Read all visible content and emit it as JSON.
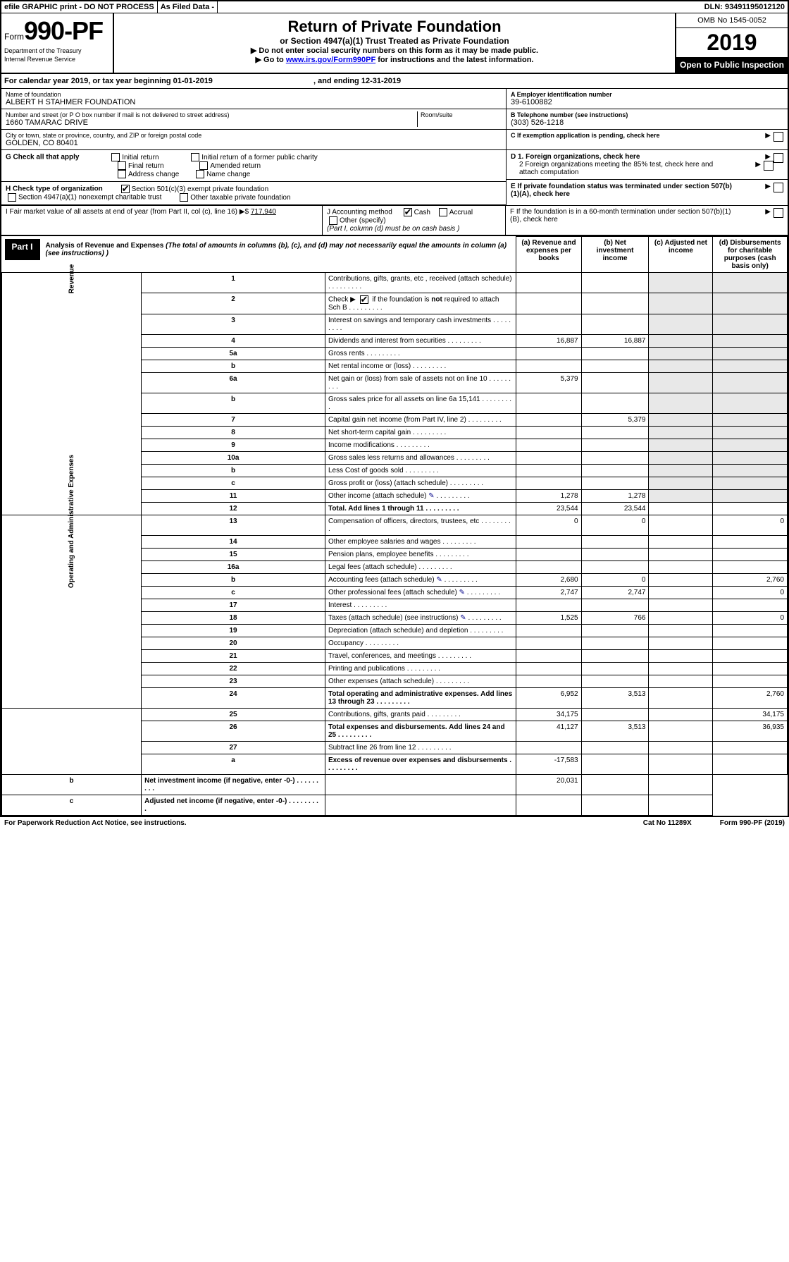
{
  "topbar": {
    "efile": "efile GRAPHIC print - DO NOT PROCESS",
    "asfiled": "As Filed Data -",
    "dln": "DLN: 93491195012120"
  },
  "header": {
    "form_prefix": "Form",
    "form_number": "990-PF",
    "dept1": "Department of the Treasury",
    "dept2": "Internal Revenue Service",
    "title": "Return of Private Foundation",
    "subtitle": "or Section 4947(a)(1) Trust Treated as Private Foundation",
    "inst1": "▶ Do not enter social security numbers on this form as it may be made public.",
    "inst2_pre": "▶ Go to ",
    "inst2_link": "www.irs.gov/Form990PF",
    "inst2_post": " for instructions and the latest information.",
    "omb": "OMB No 1545-0052",
    "year": "2019",
    "open": "Open to Public Inspection"
  },
  "calendar": {
    "text_pre": "For calendar year 2019, or tax year beginning ",
    "begin": "01-01-2019",
    "mid": ", and ending ",
    "end": "12-31-2019"
  },
  "info": {
    "name_lbl": "Name of foundation",
    "name": "ALBERT H STAHMER FOUNDATION",
    "addr_lbl": "Number and street (or P O  box number if mail is not delivered to street address)",
    "addr": "1660 TAMARAC DRIVE",
    "room_lbl": "Room/suite",
    "city_lbl": "City or town, state or province, country, and ZIP or foreign postal code",
    "city": "GOLDEN, CO  80401",
    "a_lbl": "A Employer identification number",
    "a_val": "39-6100882",
    "b_lbl": "B Telephone number (see instructions)",
    "b_val": "(303) 526-1218",
    "c_lbl": "C If exemption application is pending, check here"
  },
  "check": {
    "g": "G Check all that apply",
    "initial": "Initial return",
    "initial_former": "Initial return of a former public charity",
    "final": "Final return",
    "amended": "Amended return",
    "addr_chg": "Address change",
    "name_chg": "Name change",
    "h": "H Check type of organization",
    "h_501c3": "Section 501(c)(3) exempt private foundation",
    "h_4947": "Section 4947(a)(1) nonexempt charitable trust",
    "h_other": "Other taxable private foundation",
    "d1": "D 1. Foreign organizations, check here",
    "d2": "2 Foreign organizations meeting the 85% test, check here and attach computation",
    "e": "E  If private foundation status was terminated under section 507(b)(1)(A), check here",
    "i_lbl": "I Fair market value of all assets at end of year (from Part II, col  (c), line 16) ▶$",
    "i_val": "717,940",
    "j_lbl": "J Accounting method",
    "j_cash": "Cash",
    "j_accrual": "Accrual",
    "j_other": "Other (specify)",
    "j_note": "(Part I, column (d) must be on cash basis )",
    "f": "F  If the foundation is in a 60-month termination under section 507(b)(1)(B), check here"
  },
  "part1": {
    "tag": "Part I",
    "title": "Analysis of Revenue and Expenses",
    "note": "(The total of amounts in columns (b), (c), and (d) may not necessarily equal the amounts in column (a) (see instructions) )",
    "cols": {
      "a": "(a) Revenue and expenses per books",
      "b": "(b) Net investment income",
      "c": "(c) Adjusted net income",
      "d": "(d) Disbursements for charitable purposes (cash basis only)"
    }
  },
  "side": {
    "rev": "Revenue",
    "exp": "Operating and Administrative Expenses"
  },
  "rows": [
    {
      "n": "1",
      "d": "Contributions, gifts, grants, etc , received (attach schedule)"
    },
    {
      "n": "2",
      "d": "Check ▶ ☑ if the foundation is not required to attach Sch B"
    },
    {
      "n": "3",
      "d": "Interest on savings and temporary cash investments"
    },
    {
      "n": "4",
      "d": "Dividends and interest from securities",
      "a": "16,887",
      "b": "16,887"
    },
    {
      "n": "5a",
      "d": "Gross rents"
    },
    {
      "n": "b",
      "d": "Net rental income or (loss)"
    },
    {
      "n": "6a",
      "d": "Net gain or (loss) from sale of assets not on line 10",
      "a": "5,379"
    },
    {
      "n": "b",
      "d": "Gross sales price for all assets on line 6a          15,141"
    },
    {
      "n": "7",
      "d": "Capital gain net income (from Part IV, line 2)",
      "b": "5,379"
    },
    {
      "n": "8",
      "d": "Net short-term capital gain"
    },
    {
      "n": "9",
      "d": "Income modifications"
    },
    {
      "n": "10a",
      "d": "Gross sales less returns and allowances"
    },
    {
      "n": "b",
      "d": "Less  Cost of goods sold"
    },
    {
      "n": "c",
      "d": "Gross profit or (loss) (attach schedule)"
    },
    {
      "n": "11",
      "d": "Other income (attach schedule)",
      "icon": true,
      "a": "1,278",
      "b": "1,278"
    },
    {
      "n": "12",
      "d": "Total. Add lines 1 through 11",
      "bold": true,
      "a": "23,544",
      "b": "23,544"
    },
    {
      "n": "13",
      "d": "Compensation of officers, directors, trustees, etc",
      "a": "0",
      "b": "0",
      "dd": "0"
    },
    {
      "n": "14",
      "d": "Other employee salaries and wages"
    },
    {
      "n": "15",
      "d": "Pension plans, employee benefits"
    },
    {
      "n": "16a",
      "d": "Legal fees (attach schedule)"
    },
    {
      "n": "b",
      "d": "Accounting fees (attach schedule)",
      "icon": true,
      "a": "2,680",
      "b": "0",
      "dd": "2,760"
    },
    {
      "n": "c",
      "d": "Other professional fees (attach schedule)",
      "icon": true,
      "a": "2,747",
      "b": "2,747",
      "dd": "0"
    },
    {
      "n": "17",
      "d": "Interest"
    },
    {
      "n": "18",
      "d": "Taxes (attach schedule) (see instructions)",
      "icon": true,
      "a": "1,525",
      "b": "766",
      "dd": "0"
    },
    {
      "n": "19",
      "d": "Depreciation (attach schedule) and depletion"
    },
    {
      "n": "20",
      "d": "Occupancy"
    },
    {
      "n": "21",
      "d": "Travel, conferences, and meetings"
    },
    {
      "n": "22",
      "d": "Printing and publications"
    },
    {
      "n": "23",
      "d": "Other expenses (attach schedule)"
    },
    {
      "n": "24",
      "d": "Total operating and administrative expenses. Add lines 13 through 23",
      "bold": true,
      "a": "6,952",
      "b": "3,513",
      "dd": "2,760"
    },
    {
      "n": "25",
      "d": "Contributions, gifts, grants paid",
      "a": "34,175",
      "dd": "34,175"
    },
    {
      "n": "26",
      "d": "Total expenses and disbursements. Add lines 24 and 25",
      "bold": true,
      "a": "41,127",
      "b": "3,513",
      "dd": "36,935"
    },
    {
      "n": "27",
      "d": "Subtract line 26 from line 12"
    },
    {
      "n": "a",
      "d": "Excess of revenue over expenses and disbursements",
      "bold": true,
      "a": "-17,583"
    },
    {
      "n": "b",
      "d": "Net investment income (if negative, enter -0-)",
      "bold": true,
      "b": "20,031"
    },
    {
      "n": "c",
      "d": "Adjusted net income (if negative, enter -0-)",
      "bold": true
    }
  ],
  "footer": {
    "left": "For Paperwork Reduction Act Notice, see instructions.",
    "mid": "Cat No  11289X",
    "right": "Form 990-PF (2019)"
  }
}
